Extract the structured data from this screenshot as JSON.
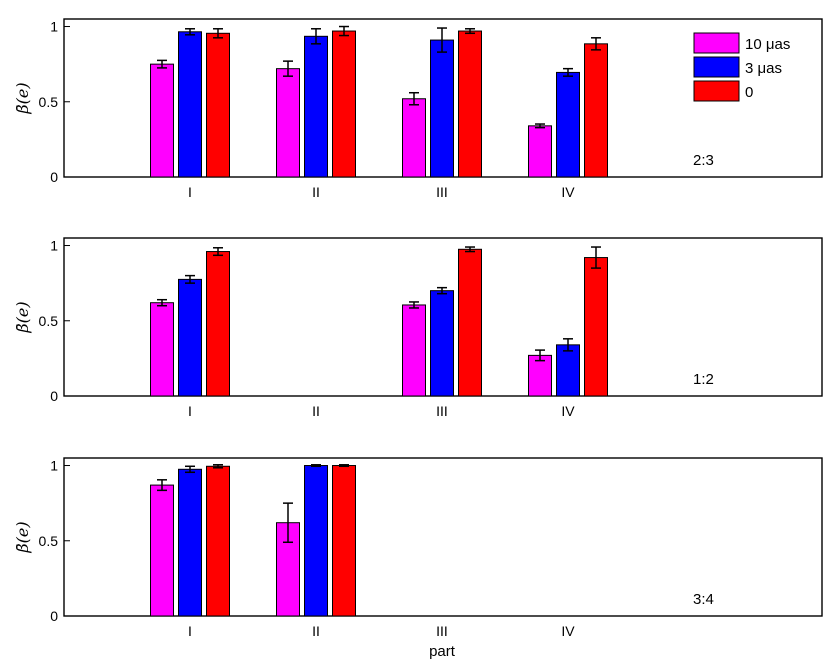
{
  "chart_data": [
    {
      "type": "bar",
      "ratio_label": "2:3",
      "ylabel": "β̄(e)",
      "categories": [
        "I",
        "II",
        "III",
        "IV"
      ],
      "yticks": [
        "0",
        "0.5",
        "1"
      ],
      "ylim": [
        0,
        1.05
      ],
      "show_legend": true,
      "series": [
        {
          "name": "10 μas",
          "color": "#ff00ff",
          "values": [
            0.75,
            0.72,
            0.52,
            0.34
          ],
          "errors": [
            0.025,
            0.05,
            0.04,
            0.012
          ]
        },
        {
          "name": "3 μas",
          "color": "#0000ff",
          "values": [
            0.965,
            0.935,
            0.91,
            0.695
          ],
          "errors": [
            0.02,
            0.05,
            0.08,
            0.025
          ]
        },
        {
          "name": "0",
          "color": "#ff0000",
          "values": [
            0.955,
            0.97,
            0.97,
            0.885
          ],
          "errors": [
            0.03,
            0.03,
            0.015,
            0.04
          ]
        }
      ]
    },
    {
      "type": "bar",
      "ratio_label": "1:2",
      "ylabel": "β̄(e)",
      "categories": [
        "I",
        "II",
        "III",
        "IV"
      ],
      "yticks": [
        "0",
        "0.5",
        "1"
      ],
      "ylim": [
        0,
        1.05
      ],
      "show_legend": false,
      "series": [
        {
          "name": "10 μas",
          "color": "#ff00ff",
          "values": [
            0.62,
            null,
            0.605,
            0.27
          ],
          "errors": [
            0.02,
            null,
            0.02,
            0.035
          ]
        },
        {
          "name": "3 μas",
          "color": "#0000ff",
          "values": [
            0.775,
            null,
            0.7,
            0.34
          ],
          "errors": [
            0.025,
            null,
            0.02,
            0.04
          ]
        },
        {
          "name": "0",
          "color": "#ff0000",
          "values": [
            0.96,
            null,
            0.975,
            0.92
          ],
          "errors": [
            0.025,
            null,
            0.015,
            0.07
          ]
        }
      ]
    },
    {
      "type": "bar",
      "ratio_label": "3:4",
      "ylabel": "β̄(e)",
      "categories": [
        "I",
        "II",
        "III",
        "IV"
      ],
      "yticks": [
        "0",
        "0.5",
        "1"
      ],
      "ylim": [
        0,
        1.05
      ],
      "show_legend": false,
      "series": [
        {
          "name": "10 μas",
          "color": "#ff00ff",
          "values": [
            0.87,
            0.62,
            null,
            null
          ],
          "errors": [
            0.035,
            0.13,
            null,
            null
          ]
        },
        {
          "name": "3 μas",
          "color": "#0000ff",
          "values": [
            0.975,
            1.0,
            null,
            null
          ],
          "errors": [
            0.02,
            0.005,
            null,
            null
          ]
        },
        {
          "name": "0",
          "color": "#ff0000",
          "values": [
            0.995,
            1.0,
            null,
            null
          ],
          "errors": [
            0.01,
            0.005,
            null,
            null
          ]
        }
      ]
    }
  ],
  "xlabel": "part"
}
